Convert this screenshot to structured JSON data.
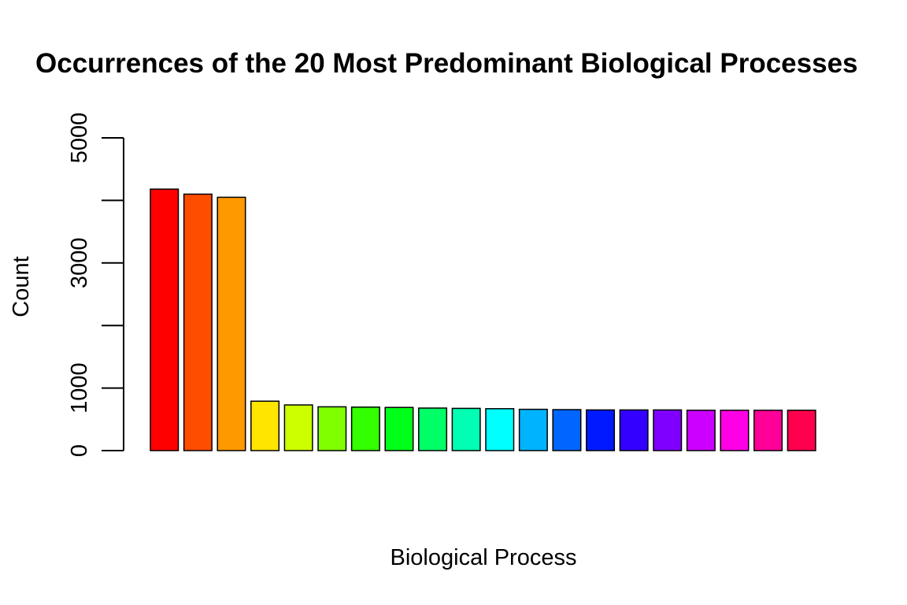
{
  "chart_data": {
    "type": "bar",
    "title": "Occurrences of the 20 Most Predominant Biological Processes",
    "xlabel": "Biological Process",
    "ylabel": "Count",
    "categories": [
      "",
      "",
      "",
      "",
      "",
      "",
      "",
      "",
      "",
      "",
      "",
      "",
      "",
      "",
      "",
      "",
      "",
      "",
      "",
      ""
    ],
    "values": [
      4180,
      4100,
      4050,
      790,
      730,
      700,
      695,
      690,
      680,
      675,
      670,
      660,
      655,
      650,
      650,
      650,
      645,
      645,
      645,
      645
    ],
    "colors": [
      "#FF0000",
      "#FF4D00",
      "#FF9900",
      "#FFE500",
      "#CCFF00",
      "#80FF00",
      "#33FF00",
      "#00FF19",
      "#00FF66",
      "#00FFB2",
      "#00FFFF",
      "#00B3FF",
      "#0066FF",
      "#001AFF",
      "#3300FF",
      "#7F00FF",
      "#CC00FF",
      "#FF00E6",
      "#FF0099",
      "#FF004D"
    ],
    "ylim": [
      0,
      5000
    ],
    "yticks": [
      0,
      1000,
      2000,
      3000,
      4000,
      5000
    ],
    "ytick_labels": [
      "0",
      "1000",
      "",
      "3000",
      "",
      "5000"
    ],
    "grid": false,
    "legend": "none"
  }
}
